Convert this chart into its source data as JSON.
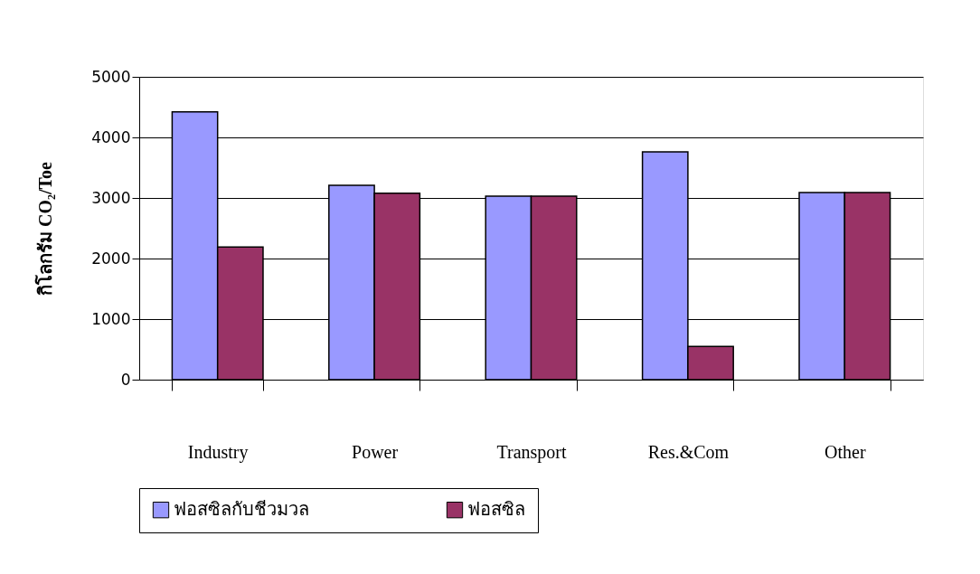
{
  "chart_data": {
    "type": "bar",
    "ylabel": "กิโลกรัม  CO₂/Toe",
    "categories": [
      "Industry",
      "Power",
      "Transport",
      "Res.&Com",
      "Other"
    ],
    "series": [
      {
        "name": "ฟอสซิลกับชีวมวล",
        "color": "#9999ff",
        "values": [
          4420,
          3210,
          3030,
          3760,
          3090
        ]
      },
      {
        "name": "ฟอสซิล",
        "color": "#993366",
        "values": [
          2190,
          3080,
          3030,
          550,
          3090
        ]
      }
    ],
    "ylim": [
      0,
      5000
    ],
    "yticks": [
      0,
      1000,
      2000,
      3000,
      4000,
      5000
    ],
    "grid": "y",
    "legend": "bottom"
  }
}
